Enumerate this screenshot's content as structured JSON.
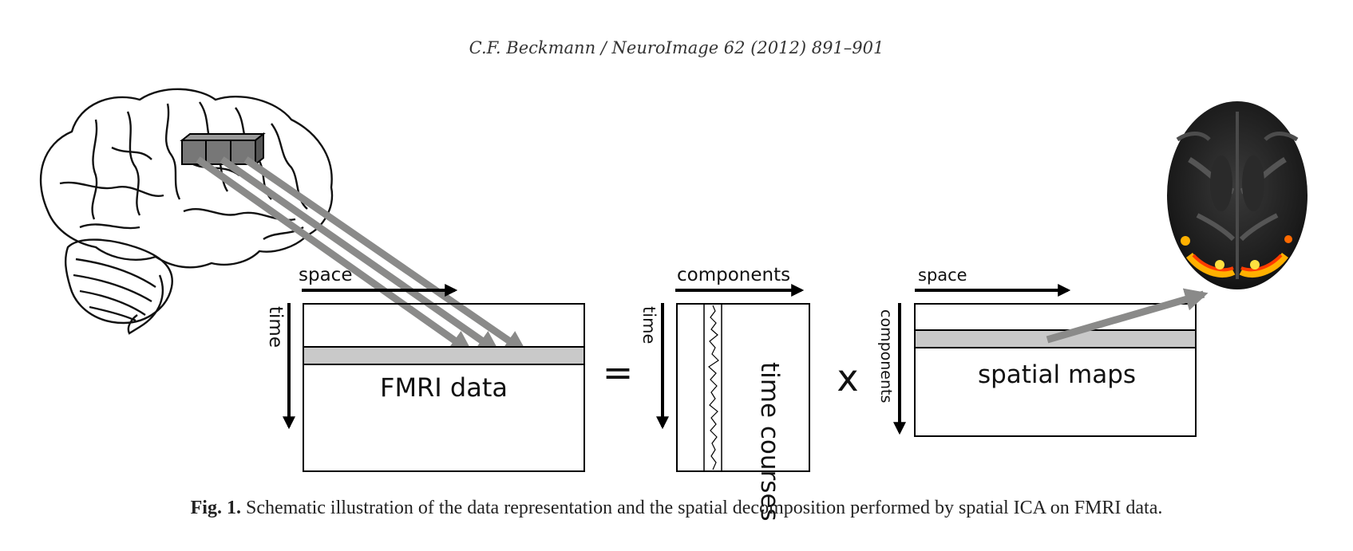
{
  "header": {
    "citation": "C.F. Beckmann / NeuroImage 62 (2012) 891–901"
  },
  "figure": {
    "fmri_block": {
      "axis_x": "space",
      "axis_y": "time",
      "label": "FMRI data"
    },
    "equals_sign": "=",
    "timecourse_block": {
      "axis_x": "components",
      "axis_y": "time",
      "label": "time courses"
    },
    "times_sign": "x",
    "maps_block": {
      "axis_x": "space",
      "axis_y": "components",
      "label": "spatial maps"
    },
    "colors": {
      "arrow_gray": "#8a8a89",
      "band_gray": "#c9c9c9",
      "activation": "#ffb000"
    }
  },
  "caption": {
    "prefix": "Fig. 1.",
    "text": " Schematic illustration of the data representation and the spatial decomposition performed by spatial ICA on FMRI data."
  }
}
